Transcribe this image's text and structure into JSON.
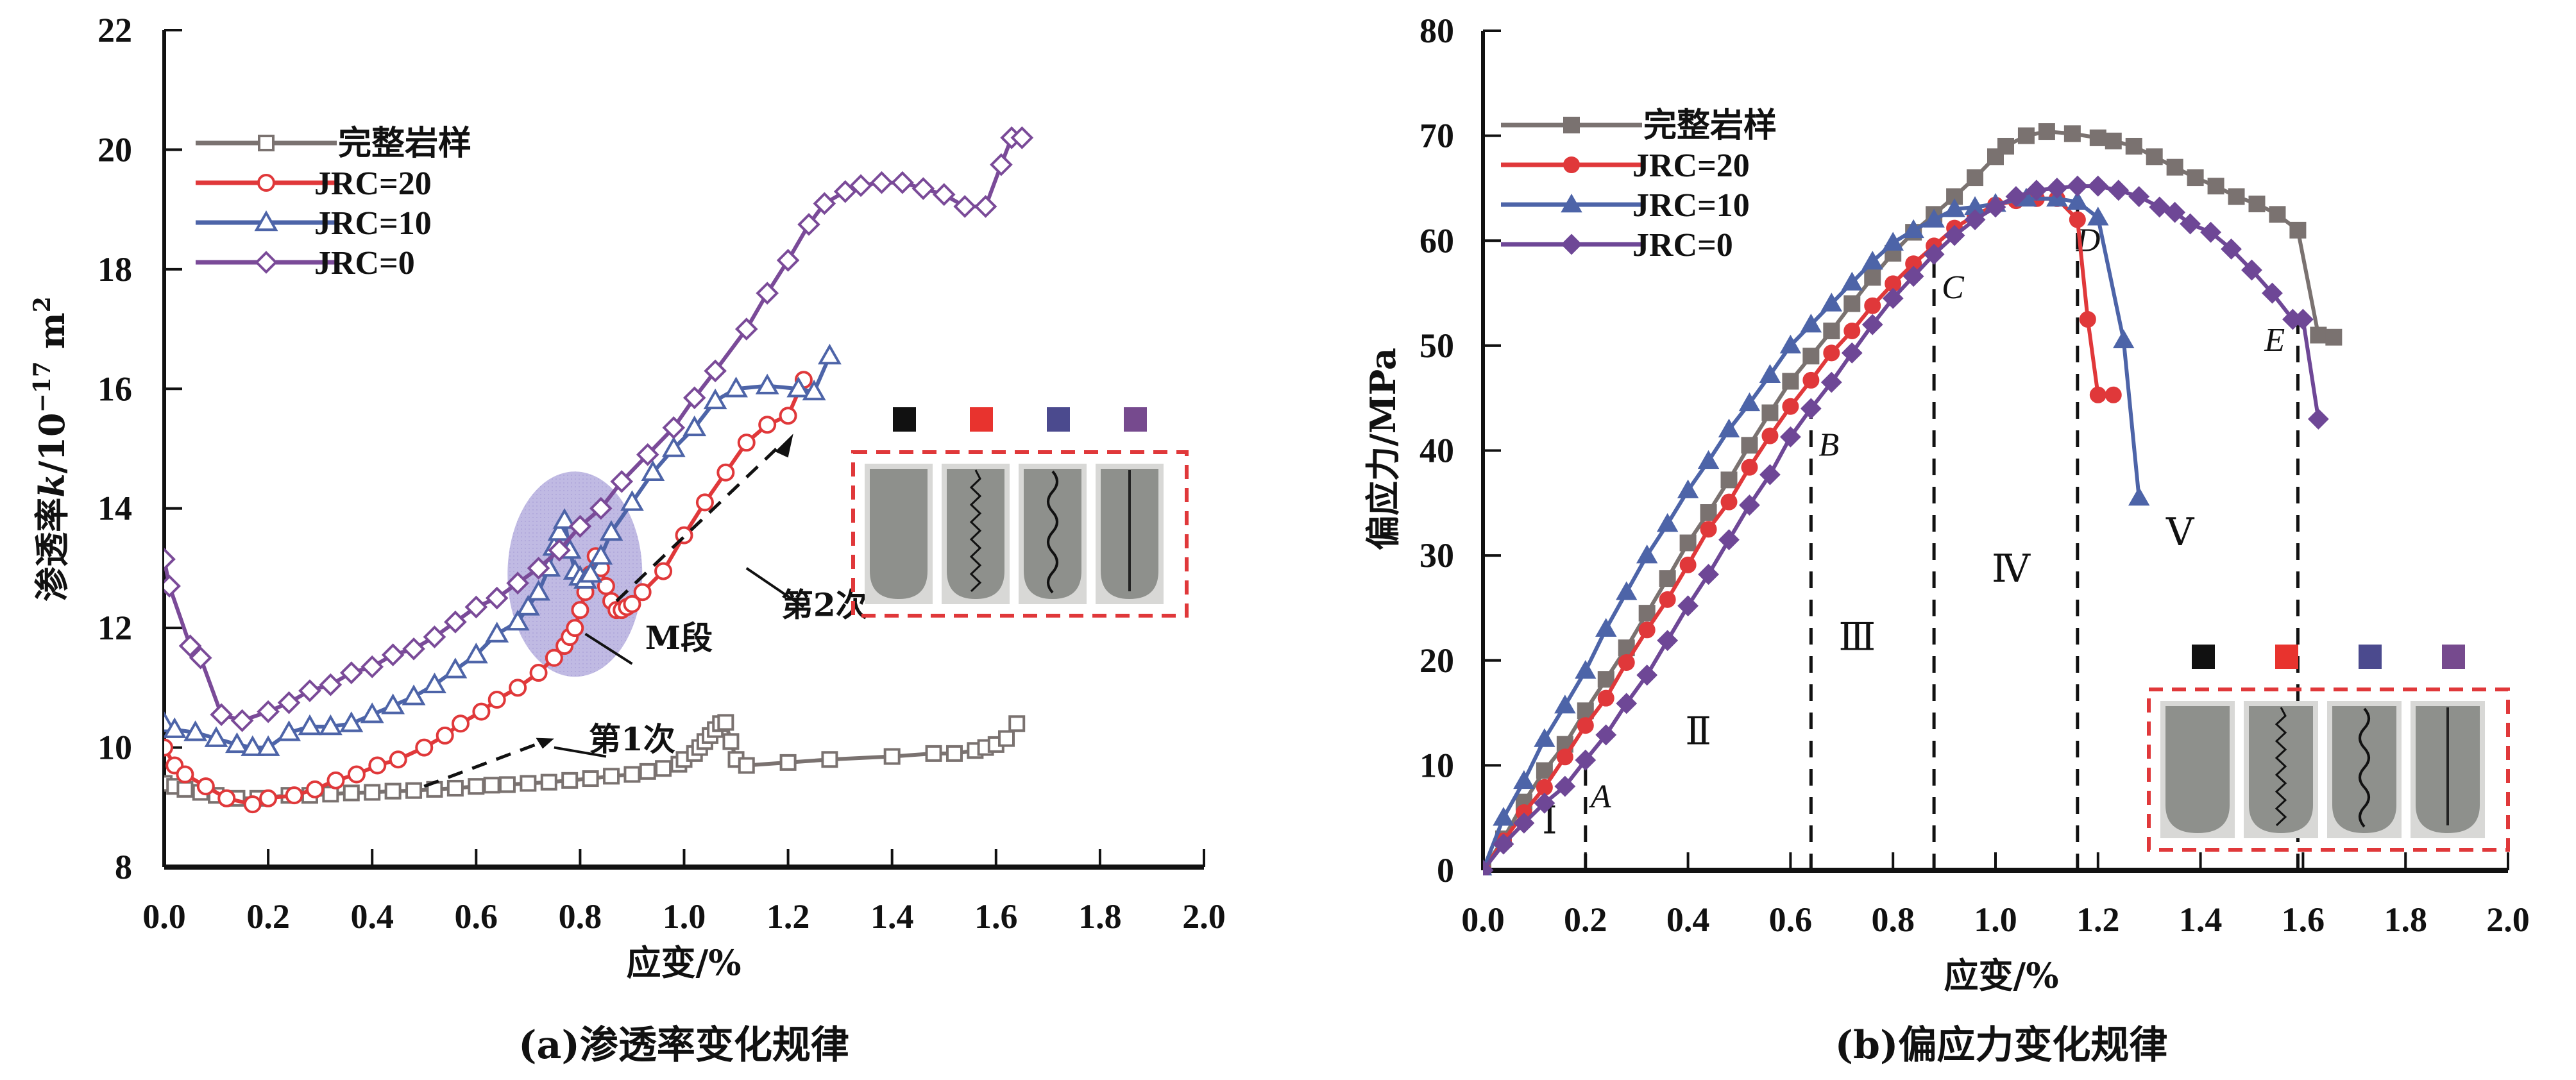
{
  "chart_data": [
    {
      "type": "line",
      "caption": "(a)渗透率变化规律",
      "xlabel": "应变/%",
      "ylabel_main": "渗透率",
      "ylabel_var": "k",
      "ylabel_unit": "/10",
      "ylabel_exp": "−17",
      "ylabel_unit2": " m",
      "ylabel_exp2": "2",
      "xlim": [
        0,
        2.0
      ],
      "ylim": [
        8,
        22
      ],
      "xticks": [
        "0.0",
        "0.2",
        "0.4",
        "0.6",
        "0.8",
        "1.0",
        "1.2",
        "1.4",
        "1.6",
        "1.8",
        "2.0"
      ],
      "yticks": [
        "8",
        "10",
        "12",
        "14",
        "16",
        "18",
        "20",
        "22"
      ],
      "legend_position": "top-left",
      "series": [
        {
          "name": "完整岩样",
          "color": "#7a7270",
          "marker": "square-open",
          "x": [
            0.0,
            0.02,
            0.04,
            0.07,
            0.1,
            0.14,
            0.18,
            0.24,
            0.28,
            0.32,
            0.36,
            0.4,
            0.44,
            0.48,
            0.52,
            0.56,
            0.6,
            0.63,
            0.66,
            0.7,
            0.74,
            0.78,
            0.82,
            0.86,
            0.9,
            0.93,
            0.96,
            0.99,
            1.0,
            1.02,
            1.03,
            1.04,
            1.05,
            1.06,
            1.07,
            1.08,
            1.09,
            1.1,
            1.12,
            1.2,
            1.28,
            1.4,
            1.48,
            1.52,
            1.56,
            1.58,
            1.6,
            1.62,
            1.64
          ],
          "y": [
            9.4,
            9.35,
            9.3,
            9.25,
            9.2,
            9.15,
            9.15,
            9.2,
            9.2,
            9.22,
            9.24,
            9.25,
            9.27,
            9.28,
            9.3,
            9.32,
            9.35,
            9.37,
            9.38,
            9.4,
            9.42,
            9.45,
            9.48,
            9.52,
            9.55,
            9.6,
            9.65,
            9.72,
            9.8,
            9.9,
            10.0,
            10.1,
            10.2,
            10.3,
            10.4,
            10.42,
            10.1,
            9.8,
            9.7,
            9.75,
            9.8,
            9.85,
            9.9,
            9.9,
            9.95,
            10.0,
            10.05,
            10.15,
            10.4
          ]
        },
        {
          "name": "JRC=20",
          "color": "#e0383a",
          "marker": "circle-open",
          "x": [
            0.0,
            0.02,
            0.04,
            0.08,
            0.12,
            0.17,
            0.2,
            0.25,
            0.29,
            0.33,
            0.37,
            0.41,
            0.45,
            0.5,
            0.54,
            0.57,
            0.61,
            0.64,
            0.68,
            0.72,
            0.75,
            0.77,
            0.78,
            0.79,
            0.8,
            0.81,
            0.82,
            0.83,
            0.84,
            0.85,
            0.86,
            0.87,
            0.88,
            0.89,
            0.9,
            0.92,
            0.96,
            1.0,
            1.04,
            1.08,
            1.12,
            1.16,
            1.2,
            1.23
          ],
          "y": [
            10.0,
            9.7,
            9.55,
            9.35,
            9.15,
            9.05,
            9.15,
            9.2,
            9.3,
            9.45,
            9.55,
            9.7,
            9.8,
            10.0,
            10.2,
            10.4,
            10.6,
            10.8,
            11.0,
            11.25,
            11.5,
            11.7,
            11.85,
            12.0,
            12.3,
            12.6,
            12.9,
            13.2,
            13.0,
            12.7,
            12.45,
            12.3,
            12.3,
            12.35,
            12.4,
            12.6,
            12.95,
            13.55,
            14.1,
            14.6,
            15.1,
            15.4,
            15.55,
            16.15
          ]
        },
        {
          "name": "JRC=10",
          "color": "#4d64a8",
          "marker": "triangle-open",
          "x": [
            0.0,
            0.02,
            0.06,
            0.1,
            0.14,
            0.17,
            0.2,
            0.24,
            0.28,
            0.32,
            0.36,
            0.4,
            0.44,
            0.48,
            0.52,
            0.56,
            0.6,
            0.64,
            0.68,
            0.7,
            0.72,
            0.74,
            0.75,
            0.76,
            0.77,
            0.78,
            0.79,
            0.8,
            0.81,
            0.82,
            0.84,
            0.86,
            0.9,
            0.94,
            0.98,
            1.02,
            1.06,
            1.1,
            1.16,
            1.22,
            1.25,
            1.28
          ],
          "y": [
            10.4,
            10.3,
            10.25,
            10.15,
            10.05,
            10.0,
            10.0,
            10.25,
            10.35,
            10.35,
            10.4,
            10.55,
            10.7,
            10.85,
            11.05,
            11.3,
            11.55,
            11.9,
            12.1,
            12.35,
            12.6,
            13.0,
            13.35,
            13.6,
            13.8,
            13.3,
            12.95,
            12.85,
            12.8,
            12.9,
            13.2,
            13.6,
            14.1,
            14.6,
            15.0,
            15.35,
            15.8,
            16.0,
            16.05,
            16.0,
            15.95,
            16.55
          ]
        },
        {
          "name": "JRC=0",
          "color": "#7a4a98",
          "marker": "diamond-open",
          "x": [
            0.0,
            0.01,
            0.05,
            0.07,
            0.11,
            0.15,
            0.2,
            0.24,
            0.28,
            0.32,
            0.36,
            0.4,
            0.44,
            0.48,
            0.52,
            0.56,
            0.6,
            0.64,
            0.68,
            0.72,
            0.76,
            0.8,
            0.84,
            0.88,
            0.93,
            0.98,
            1.02,
            1.06,
            1.12,
            1.16,
            1.2,
            1.24,
            1.27,
            1.31,
            1.34,
            1.38,
            1.42,
            1.46,
            1.5,
            1.54,
            1.58,
            1.61,
            1.63,
            1.65
          ],
          "y": [
            13.15,
            12.7,
            11.7,
            11.5,
            10.55,
            10.45,
            10.6,
            10.75,
            10.95,
            11.05,
            11.25,
            11.35,
            11.55,
            11.65,
            11.85,
            12.1,
            12.35,
            12.5,
            12.75,
            13.0,
            13.3,
            13.7,
            14.0,
            14.45,
            14.9,
            15.35,
            15.85,
            16.3,
            17.0,
            17.6,
            18.15,
            18.75,
            19.1,
            19.3,
            19.4,
            19.45,
            19.45,
            19.35,
            19.25,
            19.05,
            19.05,
            19.75,
            20.2,
            20.2
          ]
        }
      ],
      "annotations": [
        {
          "text": "M段",
          "x": 0.99,
          "y": 11.65
        },
        {
          "text": "第1次",
          "x": 0.9,
          "y": 9.95
        },
        {
          "text": "第2次",
          "x": 1.27,
          "y": 12.2
        }
      ],
      "highlight_ellipse_label": "M段",
      "inset_swatch_colors": [
        "#111111",
        "#e8332e",
        "#4b4a8e",
        "#764a8e"
      ]
    },
    {
      "type": "line",
      "caption": "(b)偏应力变化规律",
      "xlabel": "应变/%",
      "ylabel": "偏应力/MPa",
      "xlim": [
        0,
        2.0
      ],
      "ylim": [
        0,
        80
      ],
      "xticks": [
        "0.0",
        "0.2",
        "0.4",
        "0.6",
        "0.8",
        "1.0",
        "1.2",
        "1.4",
        "1.6",
        "1.8",
        "2.0"
      ],
      "yticks": [
        "0",
        "10",
        "20",
        "30",
        "40",
        "50",
        "60",
        "70",
        "80"
      ],
      "legend_position": "top-left",
      "series": [
        {
          "name": "完整岩样",
          "color": "#7a7270",
          "marker": "square-filled",
          "x": [
            0.0,
            0.04,
            0.08,
            0.12,
            0.16,
            0.2,
            0.24,
            0.28,
            0.32,
            0.36,
            0.4,
            0.44,
            0.48,
            0.52,
            0.56,
            0.6,
            0.64,
            0.68,
            0.72,
            0.76,
            0.8,
            0.84,
            0.88,
            0.92,
            0.96,
            1.0,
            1.02,
            1.06,
            1.1,
            1.15,
            1.2,
            1.23,
            1.27,
            1.31,
            1.35,
            1.39,
            1.43,
            1.47,
            1.51,
            1.55,
            1.59,
            1.63,
            1.66
          ],
          "y": [
            0.0,
            3.0,
            6.5,
            9.5,
            12.0,
            15.2,
            18.2,
            21.2,
            24.5,
            27.8,
            31.2,
            34.1,
            37.2,
            40.5,
            43.6,
            46.6,
            49.0,
            51.4,
            54.0,
            56.5,
            58.8,
            60.8,
            62.5,
            64.2,
            66.0,
            68.0,
            69.0,
            70.0,
            70.4,
            70.2,
            69.8,
            69.5,
            69.0,
            68.0,
            67.0,
            66.0,
            65.2,
            64.2,
            63.5,
            62.5,
            61.0,
            51.0,
            50.8
          ]
        },
        {
          "name": "JRC=20",
          "color": "#e0383a",
          "marker": "circle-filled",
          "x": [
            0.0,
            0.04,
            0.08,
            0.12,
            0.16,
            0.2,
            0.24,
            0.28,
            0.32,
            0.36,
            0.4,
            0.44,
            0.48,
            0.52,
            0.56,
            0.6,
            0.64,
            0.68,
            0.72,
            0.76,
            0.8,
            0.84,
            0.88,
            0.92,
            0.96,
            1.0,
            1.04,
            1.08,
            1.12,
            1.16,
            1.18,
            1.2,
            1.23
          ],
          "y": [
            0.0,
            2.8,
            5.5,
            7.9,
            10.8,
            13.8,
            16.4,
            19.8,
            22.9,
            25.8,
            29.1,
            32.5,
            35.1,
            38.4,
            41.4,
            44.2,
            46.7,
            49.3,
            51.4,
            53.8,
            55.9,
            57.8,
            59.5,
            61.2,
            62.4,
            63.4,
            63.8,
            64.0,
            64.0,
            62.0,
            52.5,
            45.3,
            45.3
          ]
        },
        {
          "name": "JRC=10",
          "color": "#4d64a8",
          "marker": "triangle-filled",
          "x": [
            0.0,
            0.04,
            0.08,
            0.12,
            0.16,
            0.2,
            0.24,
            0.28,
            0.32,
            0.36,
            0.4,
            0.44,
            0.48,
            0.52,
            0.56,
            0.6,
            0.64,
            0.68,
            0.72,
            0.76,
            0.8,
            0.84,
            0.88,
            0.92,
            0.96,
            1.0,
            1.06,
            1.12,
            1.16,
            1.2,
            1.25,
            1.28
          ],
          "y": [
            0.0,
            5.0,
            8.5,
            12.5,
            15.7,
            19.0,
            23.0,
            26.5,
            30.0,
            33.0,
            36.2,
            39.0,
            42.0,
            44.5,
            47.2,
            50.0,
            52.0,
            54.0,
            56.0,
            58.0,
            59.8,
            61.0,
            62.0,
            63.0,
            63.2,
            63.5,
            64.0,
            64.0,
            63.7,
            62.2,
            50.5,
            35.5
          ]
        },
        {
          "name": "JRC=0",
          "color": "#6e4796",
          "marker": "diamond-filled",
          "x": [
            0.0,
            0.04,
            0.08,
            0.12,
            0.16,
            0.2,
            0.24,
            0.28,
            0.32,
            0.36,
            0.4,
            0.44,
            0.48,
            0.52,
            0.56,
            0.6,
            0.64,
            0.68,
            0.72,
            0.76,
            0.8,
            0.84,
            0.88,
            0.92,
            0.96,
            1.0,
            1.04,
            1.08,
            1.12,
            1.16,
            1.2,
            1.24,
            1.28,
            1.32,
            1.35,
            1.38,
            1.42,
            1.46,
            1.5,
            1.54,
            1.58,
            1.6,
            1.63
          ],
          "y": [
            0.0,
            2.5,
            4.5,
            6.4,
            8.0,
            10.5,
            12.9,
            15.9,
            18.6,
            21.9,
            25.2,
            28.2,
            31.5,
            34.8,
            37.7,
            41.3,
            44.0,
            46.5,
            49.3,
            52.0,
            54.5,
            56.6,
            58.7,
            60.5,
            62.0,
            63.2,
            64.2,
            64.8,
            65.0,
            65.2,
            65.2,
            64.8,
            64.2,
            63.2,
            62.7,
            61.6,
            60.8,
            59.2,
            57.2,
            55.0,
            52.5,
            52.5,
            43.0
          ]
        }
      ],
      "stage_boundaries": [
        {
          "label": "A",
          "x": 0.2,
          "y_top": 11
        },
        {
          "label": "B",
          "x": 0.64,
          "y_top": 45
        },
        {
          "label": "C",
          "x": 0.88,
          "y_top": 59
        },
        {
          "label": "D",
          "x": 1.16,
          "y_top": 65
        },
        {
          "label": "E",
          "x": 1.59,
          "y_top": 53
        }
      ],
      "stages": [
        {
          "label": "Ⅰ",
          "x": 0.13,
          "y": 3.5
        },
        {
          "label": "Ⅱ",
          "x": 0.42,
          "y": 12
        },
        {
          "label": "Ⅲ",
          "x": 0.73,
          "y": 21
        },
        {
          "label": "Ⅳ",
          "x": 1.03,
          "y": 27.5
        },
        {
          "label": "Ⅴ",
          "x": 1.36,
          "y": 31
        }
      ],
      "inset_swatch_colors": [
        "#111111",
        "#e8332e",
        "#4b4a8e",
        "#764a8e"
      ]
    }
  ]
}
